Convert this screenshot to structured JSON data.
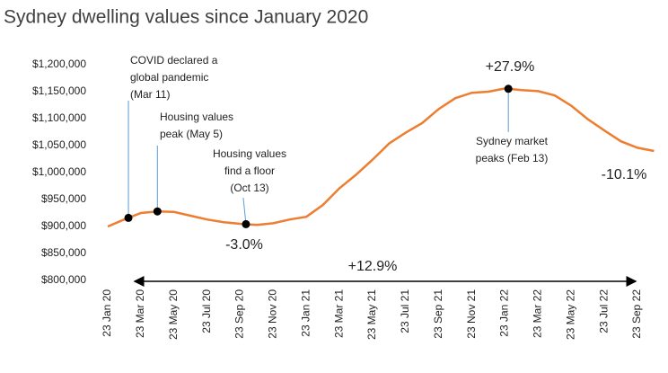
{
  "chart_data": {
    "type": "line",
    "title": "Sydney dwelling values since January 2020",
    "categories": [
      "23 Jan 20",
      null,
      "23 Mar 20",
      null,
      "23 May 20",
      null,
      "23 Jul 20",
      null,
      "23 Sep 20",
      null,
      "23 Nov 20",
      null,
      "23 Jan 21",
      null,
      "23 Mar 21",
      null,
      "23 May 21",
      null,
      "23 Jul 21",
      null,
      "23 Sep 21",
      null,
      "23 Nov 21",
      null,
      "23 Jan 22",
      null,
      "23 Mar 22",
      null,
      "23 May 22",
      null,
      "23 Jul 22",
      null,
      "23 Sep 22",
      null
    ],
    "series": [
      {
        "name": "Sydney dwelling values",
        "color": "#ed7d31",
        "values": [
          900000,
          913000,
          925000,
          928000,
          927000,
          920000,
          913000,
          908000,
          905000,
          903000,
          906000,
          913000,
          918000,
          940000,
          971000,
          996000,
          1024000,
          1054000,
          1074000,
          1092000,
          1118000,
          1138000,
          1148000,
          1150000,
          1156000,
          1153000,
          1151000,
          1143000,
          1124000,
          1099000,
          1078000,
          1058000,
          1046000,
          1040000
        ]
      }
    ],
    "ylim": [
      800000,
      1200000
    ],
    "yticks": [
      {
        "value": 800000,
        "label": "$800,000"
      },
      {
        "value": 850000,
        "label": "$850,000"
      },
      {
        "value": 900000,
        "label": "$900,000"
      },
      {
        "value": 950000,
        "label": "$950,000"
      },
      {
        "value": 1000000,
        "label": "$1,000,000"
      },
      {
        "value": 1050000,
        "label": "$1,050,000"
      },
      {
        "value": 1100000,
        "label": "$1,100,000"
      },
      {
        "value": 1150000,
        "label": "$1,150,000"
      },
      {
        "value": 1200000,
        "label": "$1,200,000"
      }
    ],
    "grid": false,
    "annotations": [
      {
        "lines": [
          "COVID declared a",
          "global pandemic",
          "(Mar 11)"
        ]
      },
      {
        "lines": [
          "Housing values",
          "peak (May 5)"
        ]
      },
      {
        "lines": [
          "Housing values",
          "find a floor",
          "(Oct 13)"
        ]
      },
      {
        "lines": [
          "Sydney market",
          "peaks (Feb 13)"
        ]
      },
      {
        "lines": [
          "+27.9%"
        ]
      },
      {
        "lines": [
          "-3.0%"
        ]
      },
      {
        "lines": [
          "-10.1%"
        ]
      },
      {
        "lines": [
          "+12.9%"
        ]
      }
    ]
  }
}
